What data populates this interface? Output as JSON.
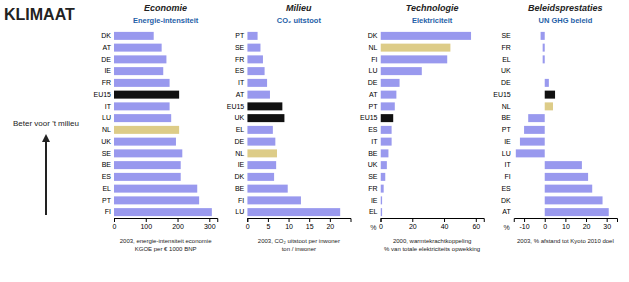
{
  "title": "KLIMAAT",
  "annotations": [
    "Beter voor 't milieu"
  ],
  "chart_data": [
    {
      "type": "bar",
      "orientation": "horizontal",
      "title": "Economie",
      "subtitle": "Energie-intensiteit",
      "xlabel": "2003, energie-intensiteit economie\nKGOE per € 1000 BNP",
      "categories": [
        "DK",
        "AT",
        "DE",
        "IE",
        "FR",
        "EU15",
        "IT",
        "LU",
        "NL",
        "UK",
        "SE",
        "BE",
        "ES",
        "EL",
        "PT",
        "FI"
      ],
      "values": [
        125,
        150,
        165,
        155,
        175,
        205,
        175,
        180,
        205,
        195,
        215,
        210,
        210,
        262,
        268,
        308
      ],
      "colors": [
        "#9999ee",
        "#9999ee",
        "#9999ee",
        "#9999ee",
        "#9999ee",
        "#111111",
        "#9999ee",
        "#9999ee",
        "#ddcc88",
        "#9999ee",
        "#9999ee",
        "#9999ee",
        "#9999ee",
        "#9999ee",
        "#9999ee",
        "#9999ee"
      ],
      "xlim": [
        0,
        325
      ],
      "xticks": [
        0,
        100,
        200,
        300
      ]
    },
    {
      "type": "bar",
      "orientation": "horizontal",
      "title": "Milieu",
      "subtitle": "CO₂ uitstoot",
      "xlabel": "2003, CO₂ uitstoot per inwoner\nton / inwoner",
      "categories": [
        "PT",
        "SE",
        "FR",
        "ES",
        "IT",
        "AT",
        "EU15",
        "UK",
        "EL",
        "DE",
        "NL",
        "IE",
        "DK",
        "BE",
        "FI",
        "LU"
      ],
      "values": [
        2.5,
        3.2,
        3.8,
        4.2,
        4.8,
        5.5,
        8.5,
        9.0,
        6.2,
        6.8,
        7.2,
        7.0,
        6.5,
        9.8,
        13.0,
        22.5
      ],
      "colors": [
        "#9999ee",
        "#9999ee",
        "#9999ee",
        "#9999ee",
        "#9999ee",
        "#9999ee",
        "#111111",
        "#111111",
        "#9999ee",
        "#9999ee",
        "#ddcc88",
        "#9999ee",
        "#9999ee",
        "#9999ee",
        "#9999ee",
        "#9999ee"
      ],
      "xlim": [
        0,
        25
      ],
      "xticks": [
        0,
        5,
        10,
        15,
        20
      ]
    },
    {
      "type": "bar",
      "orientation": "horizontal",
      "title": "Technologie",
      "subtitle": "Elektriciteit",
      "xlabel": "2000, warmtekrachtkoppeling\n% van totale elektriciteits opwekking",
      "annotations": [
        "%"
      ],
      "categories": [
        "DK",
        "NL",
        "FI",
        "LU",
        "DE",
        "AT",
        "PT",
        "EU15",
        "ES",
        "IT",
        "BE",
        "UK",
        "SE",
        "FR",
        "IE",
        "EL"
      ],
      "values": [
        57,
        44,
        42,
        26,
        12,
        10,
        9,
        8,
        7,
        7,
        5,
        4,
        3,
        2,
        1,
        1
      ],
      "colors": [
        "#9999ee",
        "#ddcc88",
        "#9999ee",
        "#9999ee",
        "#9999ee",
        "#9999ee",
        "#9999ee",
        "#111111",
        "#9999ee",
        "#9999ee",
        "#9999ee",
        "#9999ee",
        "#9999ee",
        "#9999ee",
        "#9999ee",
        "#9999ee"
      ],
      "xlim": [
        0,
        65
      ],
      "xticks": [
        0,
        20,
        40,
        60
      ]
    },
    {
      "type": "bar",
      "orientation": "horizontal",
      "title": "Beleidsprestaties",
      "subtitle": "UN GHG beleid",
      "xlabel": "2003, % afstand tot Kyoto 2010 doel",
      "annotations": [
        "%"
      ],
      "categories": [
        "SE",
        "FR",
        "EL",
        "UK",
        "DE",
        "EU15",
        "NL",
        "BE",
        "PT",
        "IE",
        "LU",
        "IT",
        "FI",
        "ES",
        "DK",
        "AT"
      ],
      "values": [
        -2,
        -1,
        -1,
        0,
        2,
        5,
        4,
        -8,
        -10,
        -12,
        -14,
        18,
        21,
        23,
        28,
        31
      ],
      "colors": [
        "#9999ee",
        "#9999ee",
        "#9999ee",
        "#9999ee",
        "#9999ee",
        "#111111",
        "#ddcc88",
        "#9999ee",
        "#9999ee",
        "#9999ee",
        "#9999ee",
        "#9999ee",
        "#9999ee",
        "#9999ee",
        "#9999ee",
        "#9999ee"
      ],
      "xlim": [
        -15,
        35
      ],
      "xticks": [
        -10,
        0,
        10,
        20,
        30
      ]
    }
  ]
}
